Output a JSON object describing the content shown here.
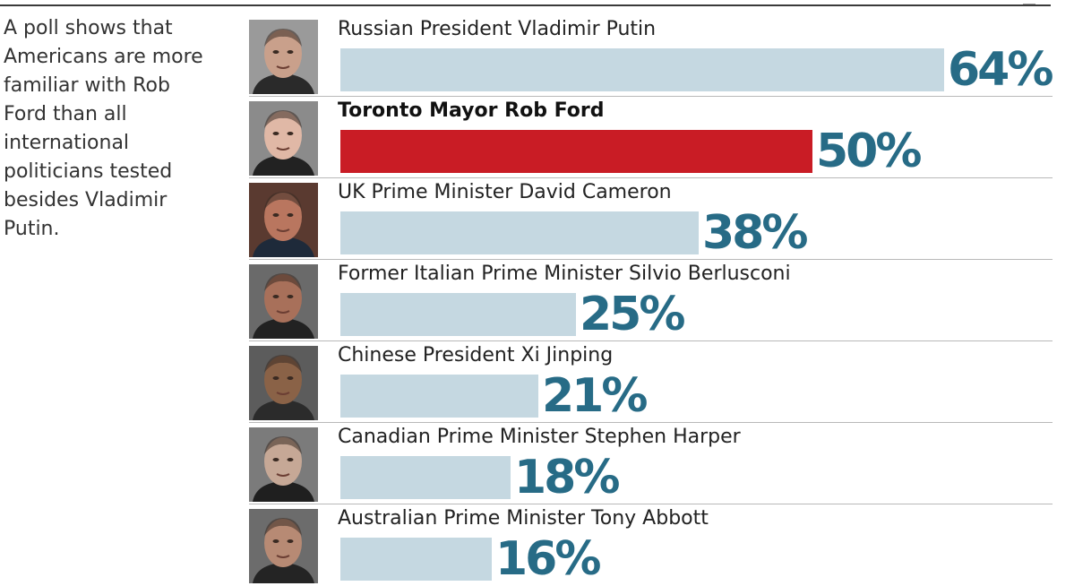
{
  "intro_text": "A poll shows that Americans are more familiar with Rob Ford than all international politicians tested besides Vladimir Putin.",
  "chart_data": {
    "type": "bar",
    "orientation": "horizontal",
    "categories": [
      "Russian President Vladimir Putin",
      "Toronto Mayor Rob Ford",
      "UK Prime Minister David Cameron",
      "Former Italian Prime Minister Silvio Berlusconi",
      "Chinese President Xi Jinping",
      "Canadian Prime Minister Stephen Harper",
      "Australian Prime Minister Tony Abbott"
    ],
    "values": [
      64,
      50,
      38,
      25,
      21,
      18,
      16
    ],
    "value_labels": [
      "64%",
      "50%",
      "38%",
      "25%",
      "21%",
      "18%",
      "16%"
    ],
    "highlighted": "Toronto Mayor Rob Ford",
    "unit": "%",
    "xlim": [
      0,
      64
    ],
    "grid": false,
    "legend": "none",
    "colors": {
      "bar": "#c5d8e1",
      "highlight_bar": "#c91c25",
      "value_text": "#276b86"
    },
    "photos": [
      "portrait-vladimir-putin",
      "portrait-rob-ford",
      "portrait-david-cameron",
      "portrait-silvio-berlusconi",
      "portrait-xi-jinping",
      "portrait-stephen-harper",
      "portrait-tony-abbott"
    ]
  }
}
